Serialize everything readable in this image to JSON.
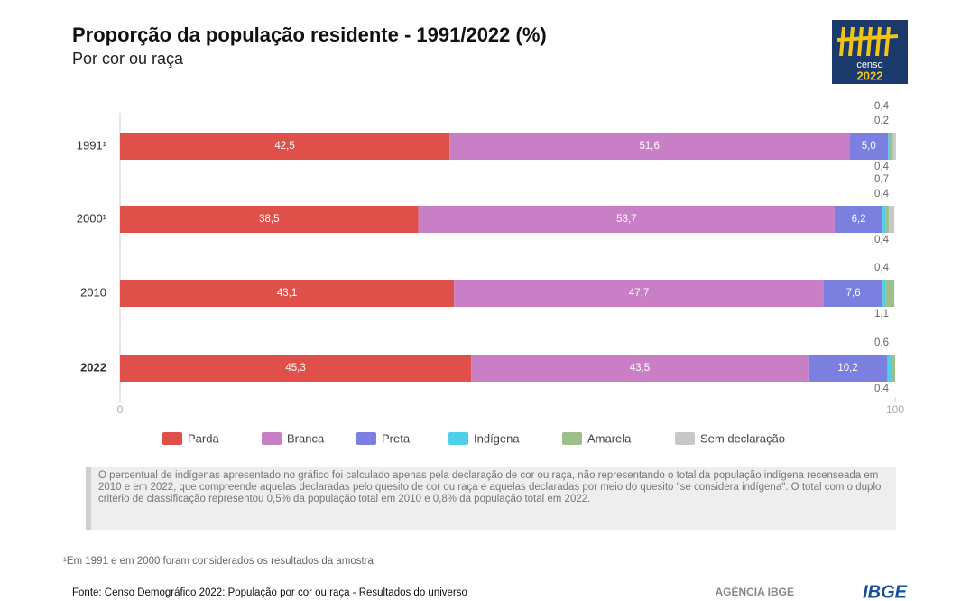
{
  "chart_data": {
    "type": "stacked-bar-horizontal",
    "title": "Proporção da população residente - 1991/2022 (%)",
    "subtitle": "Por cor ou raça",
    "categories": [
      "1991¹",
      "2000¹",
      "2010",
      "2022"
    ],
    "series": [
      {
        "name": "Parda",
        "color": "#e0504a",
        "values": [
          42.5,
          38.5,
          43.1,
          45.3
        ],
        "value_labels": [
          "42,5",
          "38,5",
          "43,1",
          "45,3"
        ]
      },
      {
        "name": "Branca",
        "color": "#c97fc5",
        "values": [
          51.6,
          53.7,
          47.7,
          43.5
        ],
        "value_labels": [
          "51,6",
          "53,7",
          "47,7",
          "43,5"
        ]
      },
      {
        "name": "Preta",
        "color": "#7b7fe0",
        "values": [
          5.0,
          6.2,
          7.6,
          10.2
        ],
        "value_labels": [
          "5,0",
          "6,2",
          "7,6",
          "10,2"
        ]
      },
      {
        "name": "Indígena",
        "color": "#4dd0e8",
        "values": [
          0.2,
          0.4,
          0.4,
          0.6
        ],
        "value_labels": [
          "0,2",
          "0,4",
          "0,4",
          "0,6"
        ]
      },
      {
        "name": "Amarela",
        "color": "#9dbf8a",
        "values": [
          0.4,
          0.4,
          1.1,
          0.4
        ],
        "value_labels": [
          "0,4",
          "0,4",
          "1,1",
          "0,4"
        ]
      },
      {
        "name": "Sem declaração",
        "color": "#c8c8c8",
        "values": [
          0.4,
          0.7,
          null,
          null
        ],
        "value_labels": [
          "0,4",
          "0,7",
          null,
          null
        ]
      }
    ],
    "xlim": [
      0,
      100
    ],
    "xticks": [
      0,
      100
    ],
    "note": "O percentual de indígenas apresentado no gráfico foi calculado apenas pela declaração de cor ou raça, não representando o total da população indígena recenseada em 2010 e em 2022, que compreende aquelas declaradas pelo quesito de cor ou raça e aquelas declaradas por meio do quesito \"se considera indígena\". O total com o duplo critério de classificação representou 0,5% da população total em 2010 e 0,8% da população total em 2022.",
    "footnote": "¹Em 1991 e em 2000 foram considerados os resultados da amostra",
    "source": "Fonte: Censo Demográfico 2022: População por cor ou raça - Resultados do universo",
    "logo_censo": [
      "censo",
      "2022"
    ],
    "logo_agencia": "AGÊNCIA IBGE",
    "logo_ibge": "IBGE"
  }
}
